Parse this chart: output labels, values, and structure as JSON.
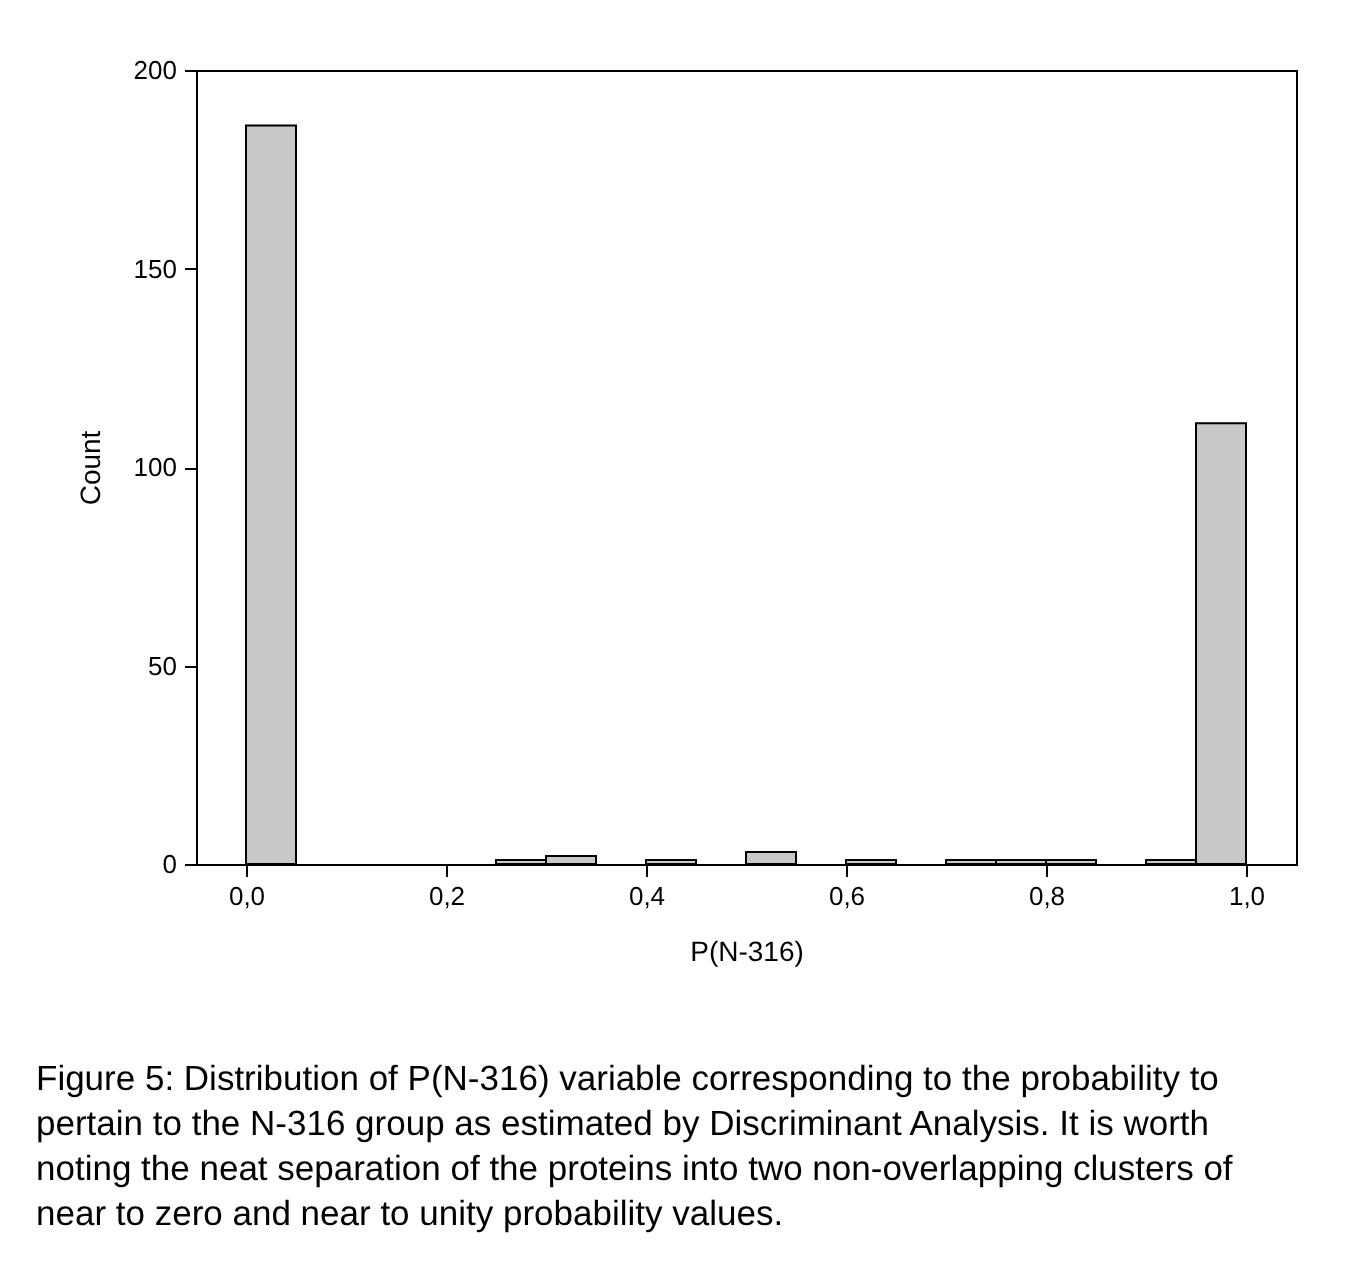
{
  "chart_data": {
    "type": "histogram",
    "xlabel": "P(N-316)",
    "ylabel": "Count",
    "bins": [
      0,
      0.05,
      0.1,
      0.15,
      0.2,
      0.25,
      0.3,
      0.35,
      0.4,
      0.45,
      0.5,
      0.55,
      0.6,
      0.65,
      0.7,
      0.75,
      0.8,
      0.85,
      0.9,
      0.95,
      1.0
    ],
    "values": [
      186,
      0,
      0,
      0,
      0,
      1,
      2,
      0,
      1,
      0,
      3,
      0,
      1,
      0,
      1,
      1,
      1,
      0,
      1,
      111
    ],
    "color": "#c8c8c8",
    "xlim": [
      -0.05,
      1.05
    ],
    "xticks": [
      {
        "value": 0,
        "label": "0,0"
      },
      {
        "value": 0.2,
        "label": "0,2"
      },
      {
        "value": 0.4,
        "label": "0,4"
      },
      {
        "value": 0.6,
        "label": "0,6"
      },
      {
        "value": 0.8,
        "label": "0,8"
      },
      {
        "value": 1.0,
        "label": "1,0"
      }
    ],
    "ylim": [
      0,
      200
    ],
    "yticks": [
      0,
      50,
      100,
      150,
      200
    ],
    "grid": false,
    "annotations": [
      "Figure 5: Distribution of P(N-316) variable corresponding to the probability to pertain to the N-316 group as estimated by Discriminant Analysis. It is worth noting the neat separation of the proteins into two non-overlapping clusters of near to zero and near to unity probability values."
    ]
  }
}
